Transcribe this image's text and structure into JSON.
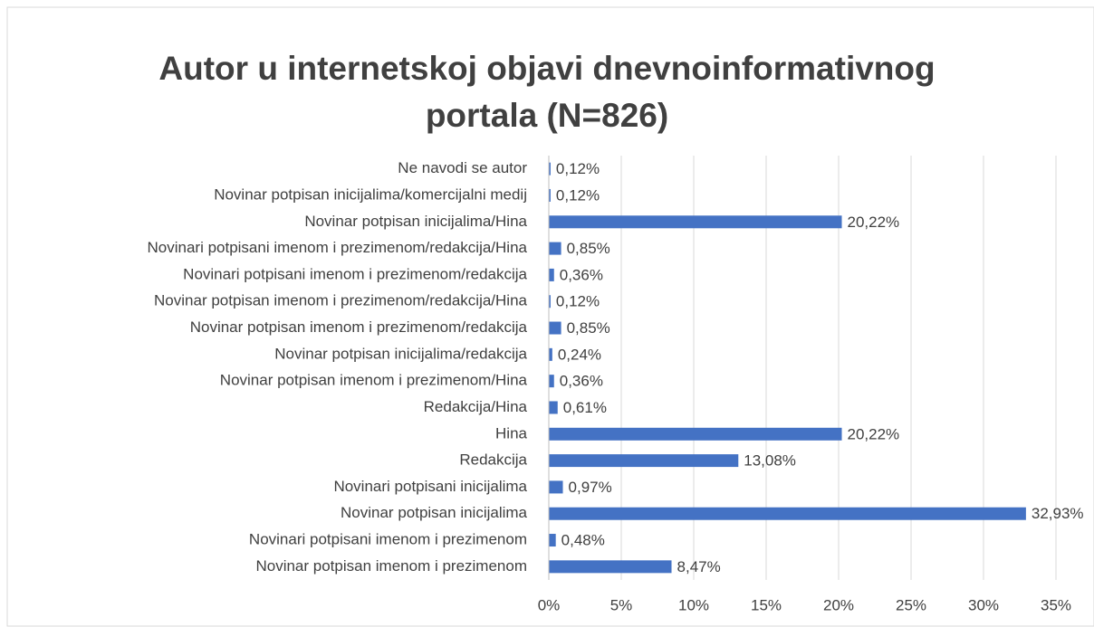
{
  "chart_data": {
    "type": "bar",
    "orientation": "horizontal",
    "title": [
      "Autor u internetskoj objavi dnevnoinformativnog",
      "portala (N=826)"
    ],
    "categories": [
      "Ne navodi se autor",
      "Novinar potpisan inicijalima/komercijalni medij",
      "Novinar potpisan inicijalima/Hina",
      "Novinari potpisani imenom i prezimenom/redakcija/Hina",
      "Novinari potpisani imenom i prezimenom/redakcija",
      "Novinar potpisan imenom i prezimenom/redakcija/Hina",
      "Novinar potpisan imenom i prezimenom/redakcija",
      "Novinar potpisan inicijalima/redakcija",
      "Novinar potpisan imenom i prezimenom/Hina",
      "Redakcija/Hina",
      "Hina",
      "Redakcija",
      "Novinari potpisani inicijalima",
      "Novinar potpisan inicijalima",
      "Novinari potpisani imenom i prezimenom",
      "Novinar potpisan imenom i prezimenom"
    ],
    "values": [
      0.12,
      0.12,
      20.22,
      0.85,
      0.36,
      0.12,
      0.85,
      0.24,
      0.36,
      0.61,
      20.22,
      13.08,
      0.97,
      32.93,
      0.48,
      8.47
    ],
    "value_labels": [
      "0,12%",
      "0,12%",
      "20,22%",
      "0,85%",
      "0,36%",
      "0,12%",
      "0,85%",
      "0,24%",
      "0,36%",
      "0,61%",
      "20,22%",
      "13,08%",
      "0,97%",
      "32,93%",
      "0,48%",
      "8,47%"
    ],
    "color": "#4472c4",
    "xlim": [
      0,
      35
    ],
    "xticks": [
      {
        "value": 0,
        "label": "0%"
      },
      {
        "value": 5,
        "label": "5%"
      },
      {
        "value": 10,
        "label": "10%"
      },
      {
        "value": 15,
        "label": "15%"
      },
      {
        "value": 20,
        "label": "20%"
      },
      {
        "value": 25,
        "label": "25%"
      },
      {
        "value": 30,
        "label": "30%"
      },
      {
        "value": 35,
        "label": "35%"
      }
    ],
    "grid": true
  }
}
